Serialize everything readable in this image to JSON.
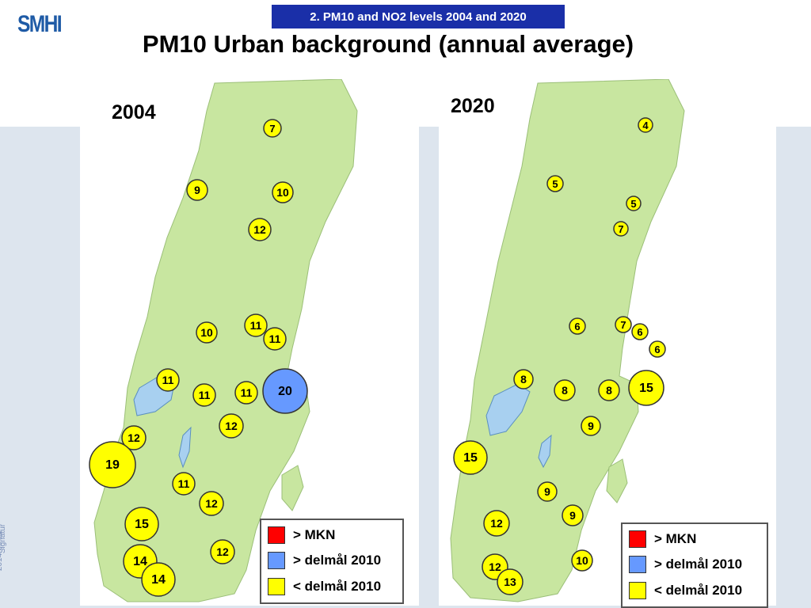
{
  "header": {
    "logo": "SMHI",
    "section": "2. PM10 and NO2 levels 2004 and 2020",
    "title": "PM10 Urban background (annual average)"
  },
  "sidebar": {
    "date": "2014-09-22",
    "signature": "Signatur"
  },
  "colors": {
    "land": "#c8e6a0",
    "lake": "#a8d0f0",
    "above_mkn": "#ff0000",
    "above_target": "#6699ff",
    "below_target": "#ffff00",
    "section_box": "#1a2fa8"
  },
  "maps": [
    {
      "year": "2004",
      "markers": [
        {
          "value": "7",
          "category": "below_target"
        },
        {
          "value": "9",
          "category": "below_target"
        },
        {
          "value": "10",
          "category": "below_target"
        },
        {
          "value": "12",
          "category": "below_target"
        },
        {
          "value": "10",
          "category": "below_target"
        },
        {
          "value": "11",
          "category": "below_target"
        },
        {
          "value": "11",
          "category": "below_target"
        },
        {
          "value": "11",
          "category": "below_target"
        },
        {
          "value": "11",
          "category": "below_target"
        },
        {
          "value": "11",
          "category": "below_target"
        },
        {
          "value": "20",
          "category": "above_target"
        },
        {
          "value": "12",
          "category": "below_target"
        },
        {
          "value": "12",
          "category": "below_target"
        },
        {
          "value": "19",
          "category": "below_target"
        },
        {
          "value": "11",
          "category": "below_target"
        },
        {
          "value": "12",
          "category": "below_target"
        },
        {
          "value": "15",
          "category": "below_target"
        },
        {
          "value": "12",
          "category": "below_target"
        },
        {
          "value": "14",
          "category": "below_target"
        },
        {
          "value": "14",
          "category": "below_target"
        }
      ]
    },
    {
      "year": "2020",
      "markers": [
        {
          "value": "4",
          "category": "below_target"
        },
        {
          "value": "5",
          "category": "below_target"
        },
        {
          "value": "5",
          "category": "below_target"
        },
        {
          "value": "7",
          "category": "below_target"
        },
        {
          "value": "6",
          "category": "below_target"
        },
        {
          "value": "7",
          "category": "below_target"
        },
        {
          "value": "6",
          "category": "below_target"
        },
        {
          "value": "6",
          "category": "below_target"
        },
        {
          "value": "8",
          "category": "below_target"
        },
        {
          "value": "8",
          "category": "below_target"
        },
        {
          "value": "8",
          "category": "below_target"
        },
        {
          "value": "15",
          "category": "below_target"
        },
        {
          "value": "9",
          "category": "below_target"
        },
        {
          "value": "15",
          "category": "below_target"
        },
        {
          "value": "9",
          "category": "below_target"
        },
        {
          "value": "9",
          "category": "below_target"
        },
        {
          "value": "12",
          "category": "below_target"
        },
        {
          "value": "10",
          "category": "below_target"
        },
        {
          "value": "12",
          "category": "below_target"
        },
        {
          "value": "13",
          "category": "below_target"
        }
      ]
    }
  ],
  "legend": {
    "items": [
      {
        "label": "> MKN",
        "category": "above_mkn"
      },
      {
        "label": "> delmål 2010",
        "category": "above_target"
      },
      {
        "label": "< delmål 2010",
        "category": "below_target"
      }
    ]
  }
}
